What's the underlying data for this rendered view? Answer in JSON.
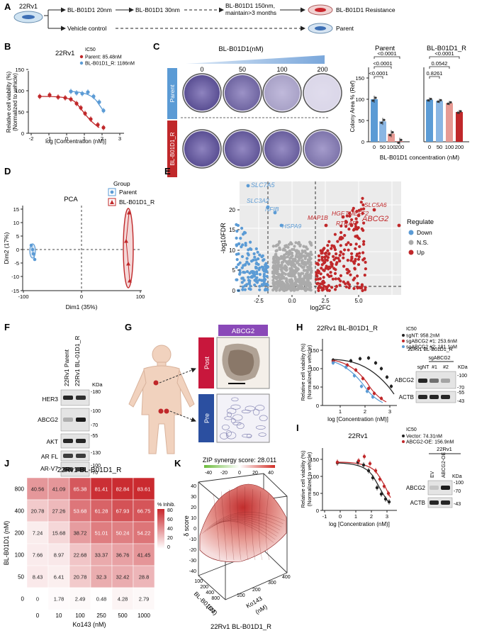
{
  "panelA": {
    "letter": "A",
    "cell": "22Rv1",
    "step1": "BL-B01D1 20nm",
    "step2": "BL-B01D1 30nm",
    "step3a": "BL-B01D1 150nm,",
    "step3b": "maintain>3 months",
    "resistance": "BL-B01D1 Resistance",
    "vehicle": "Vehicle control",
    "parent": "Parent"
  },
  "panelB": {
    "letter": "B",
    "title": "22Rv1",
    "legend_title": "IC50",
    "legend": [
      "Parent: 85.48nM",
      "BL-B01D1_R: 1186nM"
    ],
    "ylabel1": "Relative cell viability (%)",
    "ylabel2": "(Normalized to vehicle)",
    "xlabel": "log [Concentration (nM)]",
    "xticks": [
      "-2",
      "-1",
      "0",
      "1",
      "2",
      "3"
    ],
    "yticks": [
      "0",
      "50",
      "100",
      "150"
    ]
  },
  "panelC": {
    "letter": "C",
    "header": "BL-B01D1(nM)",
    "concs": [
      "0",
      "50",
      "100",
      "200"
    ],
    "row_parent": "Parent",
    "row_resistant": "BL-B01D1_R",
    "ylabel": "Colony Area % (Ref)",
    "xlabel": "BL-B01D1 concentration (nM)",
    "yticks": [
      "0",
      "50",
      "100",
      "150"
    ],
    "parent_title": "Parent",
    "resistant_title": "BL-B01D1_R",
    "parent_p": [
      "<0.0001",
      "<0.0001",
      "<0.0001"
    ],
    "resistant_p": [
      "0.8261",
      "0.0542",
      "<0.0001"
    ],
    "bar_xticks": [
      "0",
      "50",
      "100",
      "200"
    ]
  },
  "panelD": {
    "letter": "D",
    "title": "PCA",
    "xlabel": "Dim1 (35%)",
    "ylabel": "Dim2 (17%)",
    "xticks": [
      "-100",
      "0",
      "100"
    ],
    "yticks": [
      "-15",
      "-10",
      "-5",
      "0",
      "5",
      "10",
      "15"
    ],
    "legend_title": "Group",
    "legend": [
      "Parent",
      "BL-B01D1_R"
    ]
  },
  "panelE": {
    "letter": "E",
    "ylabel": "-log10FDR",
    "xlabel": "log2FC",
    "xticks": [
      "-2.5",
      "0.0",
      "2.5",
      "5.0"
    ],
    "yticks": [
      "0",
      "5",
      "10",
      "15",
      "20"
    ],
    "legend_title": "Regulate",
    "legend": [
      "Down",
      "N.S.",
      "Up"
    ],
    "genes_down": [
      "SLC7A5",
      "SLC3A2",
      "NFIB",
      "HSPA9"
    ],
    "genes_up": [
      "SLC5A6",
      "HGF",
      "TMEFF2",
      "MAP1B",
      "RTRAF",
      "ABCG2"
    ]
  },
  "panelF": {
    "letter": "F",
    "lanes": [
      "22Rv1 Parent",
      "22Rv1 BL-01D1_R"
    ],
    "kda": "KDa",
    "proteins": [
      "HER3",
      "ABCG2",
      "AKT",
      "AR FL",
      "AR-V7",
      "ACTB"
    ],
    "markers": [
      "-180",
      "-100",
      "-70",
      "-55",
      "-130",
      "-100",
      "-70",
      "-55",
      "-43"
    ]
  },
  "panelG": {
    "letter": "G",
    "stain": "ABCG2",
    "post": "Post",
    "pre": "Pre"
  },
  "panelH": {
    "letter": "H",
    "title": "22Rv1 BL-B01D1_R",
    "legend_title": "IC50",
    "legend": [
      "sgNT: 958.2nM",
      "sgABCG2 #1: 253.6nM",
      "sgABCG2 #2: 181.1nM"
    ],
    "ylabel1": "Relative cell viability (%)",
    "ylabel2": "(Normalized to vehicle)",
    "xlabel": "log [Concentration (nM)]",
    "xticks": [
      "1",
      "2",
      "3"
    ],
    "yticks": [
      "0",
      "50",
      "100",
      "150"
    ],
    "blot_title": "22Rv1 BL-B01D1_R",
    "blot_group": "sgABCG2",
    "blot_lanes": [
      "sgNT",
      "#1",
      "#2"
    ],
    "kda": "KDa",
    "proteins": [
      "ABCG2",
      "ACTB"
    ],
    "markers": [
      "-100",
      "-70",
      "-55",
      "-43"
    ]
  },
  "panelI": {
    "letter": "I",
    "title": "22Rv1",
    "legend_title": "IC50",
    "legend": [
      "Vector: 74.31nM",
      "ABCG2-OE: 156.9nM"
    ],
    "ylabel1": "Relative cell viability (%)",
    "ylabel2": "(Normalized to vehicle)",
    "xlabel": "log [Concentration (nM)]",
    "xticks": [
      "-1",
      "0",
      "1",
      "2",
      "3"
    ],
    "yticks": [
      "0",
      "50",
      "100",
      "150"
    ],
    "blot_title": "22Rv1",
    "blot_lanes": [
      "EV",
      "ABCG2-OE"
    ],
    "kda": "KDa",
    "proteins": [
      "ABCG2",
      "ACTB"
    ],
    "markers": [
      "-100",
      "-70",
      "-43"
    ]
  },
  "panelJ": {
    "letter": "J",
    "title": "22Rv1 BL-B01D1_R",
    "ylabel": "BL-B01D1 (nM)",
    "xlabel": "Ko143 (nM)",
    "legend_title": "% Inhib.",
    "legend_ticks": [
      "80",
      "60",
      "40",
      "20",
      "0"
    ],
    "rows": [
      "800",
      "400",
      "200",
      "100",
      "50",
      "0"
    ],
    "cols": [
      "0",
      "10",
      "100",
      "250",
      "500",
      "1000"
    ],
    "values": [
      [
        "40.56",
        "41.09",
        "65.38",
        "81.41",
        "82.84",
        "83.61"
      ],
      [
        "20.78",
        "27.26",
        "53.68",
        "61.28",
        "67.93",
        "66.75"
      ],
      [
        "7.24",
        "15.68",
        "38.72",
        "51.01",
        "50.24",
        "54.22"
      ],
      [
        "7.66",
        "8.97",
        "22.68",
        "33.37",
        "36.76",
        "41.45"
      ],
      [
        "8.43",
        "6.41",
        "20.78",
        "32.3",
        "32.42",
        "28.8"
      ],
      [
        "0",
        "1.78",
        "2.49",
        "0.48",
        "4.28",
        "2.79"
      ]
    ]
  },
  "panelK": {
    "letter": "K",
    "title": "ZIP synergy score: 28.011",
    "scale": [
      "-40",
      "-20",
      "0",
      "20",
      "40"
    ],
    "zlabel": "δ score",
    "zticks": [
      "40",
      "30",
      "20",
      "10",
      "0",
      "-10",
      "-20",
      "-30",
      "-40"
    ],
    "xlabel1": "BL-B01D1",
    "xlabel2": "(nM)",
    "ylabel1": "Ko143",
    "ylabel2": "(nM)",
    "xticks": [
      "100",
      "200",
      "400",
      "800"
    ],
    "yticks": [
      "100",
      "200",
      "300",
      "400"
    ],
    "bottom": "22Rv1 BL-B01D1_R"
  },
  "colors": {
    "red": "#c0282a",
    "blue": "#5b9bd5",
    "grey": "#aaaaaa",
    "crimson": "#c8173c",
    "navy": "#2b4fa0",
    "purple": "#8a49b8"
  }
}
